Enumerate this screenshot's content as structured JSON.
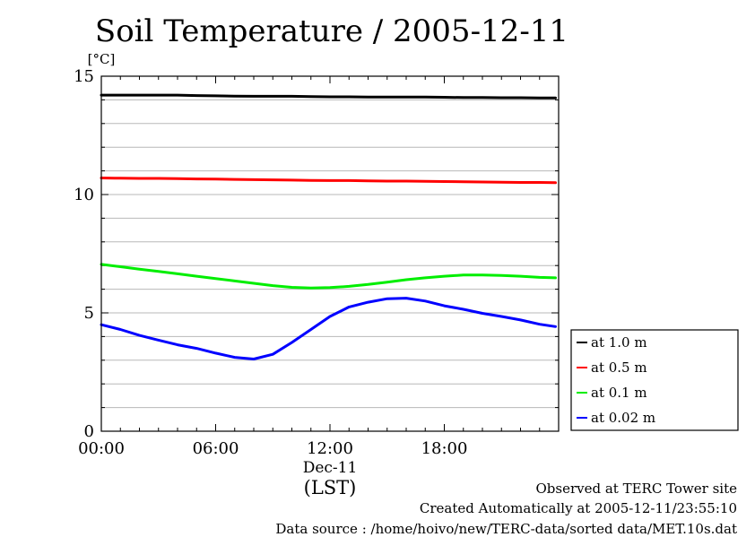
{
  "chart_data": {
    "type": "line",
    "title": "Soil Temperature / 2005-12-11",
    "ylabel": "[°C]",
    "xlabel": "(LST)",
    "x_date_label": "Dec-11",
    "ylim": [
      0,
      15
    ],
    "xlim": [
      "00:00",
      "24:00"
    ],
    "yticks": [
      "0",
      "5",
      "10",
      "15"
    ],
    "xticks": [
      "00:00",
      "06:00",
      "12:00",
      "18:00"
    ],
    "grid": true,
    "legend_position": "right",
    "x": [
      "00:00",
      "01:00",
      "02:00",
      "03:00",
      "04:00",
      "05:00",
      "06:00",
      "07:00",
      "08:00",
      "09:00",
      "10:00",
      "11:00",
      "12:00",
      "13:00",
      "14:00",
      "15:00",
      "16:00",
      "17:00",
      "18:00",
      "19:00",
      "20:00",
      "21:00",
      "22:00",
      "23:00",
      "23:50"
    ],
    "series": [
      {
        "name": "at 1.0 m",
        "color": "#000000",
        "values": [
          14.2,
          14.2,
          14.2,
          14.2,
          14.2,
          14.18,
          14.17,
          14.16,
          14.15,
          14.15,
          14.15,
          14.14,
          14.13,
          14.13,
          14.12,
          14.12,
          14.12,
          14.12,
          14.11,
          14.1,
          14.1,
          14.09,
          14.09,
          14.08,
          14.08
        ]
      },
      {
        "name": "at 0.5 m",
        "color": "#ff0000",
        "values": [
          10.7,
          10.69,
          10.68,
          10.68,
          10.67,
          10.66,
          10.65,
          10.64,
          10.63,
          10.62,
          10.61,
          10.6,
          10.59,
          10.59,
          10.58,
          10.57,
          10.57,
          10.56,
          10.55,
          10.54,
          10.53,
          10.52,
          10.51,
          10.51,
          10.5
        ]
      },
      {
        "name": "at 0.1 m",
        "color": "#00ee00",
        "values": [
          7.05,
          6.95,
          6.85,
          6.75,
          6.65,
          6.55,
          6.45,
          6.35,
          6.25,
          6.15,
          6.08,
          6.05,
          6.07,
          6.12,
          6.2,
          6.3,
          6.4,
          6.48,
          6.55,
          6.6,
          6.6,
          6.58,
          6.55,
          6.5,
          6.48
        ]
      },
      {
        "name": "at 0.02 m",
        "color": "#0000ff",
        "values": [
          4.5,
          4.3,
          4.05,
          3.85,
          3.65,
          3.5,
          3.3,
          3.12,
          3.05,
          3.25,
          3.75,
          4.3,
          4.85,
          5.25,
          5.45,
          5.6,
          5.62,
          5.5,
          5.3,
          5.15,
          4.98,
          4.85,
          4.7,
          4.52,
          4.42
        ]
      }
    ]
  },
  "footer": {
    "site": "Observed at TERC Tower site",
    "created": "Created Automatically at 2005-12-11/23:55:10",
    "source": "Data source : /home/hoivo/new/TERC-data/sorted  data/MET.10s.dat"
  }
}
